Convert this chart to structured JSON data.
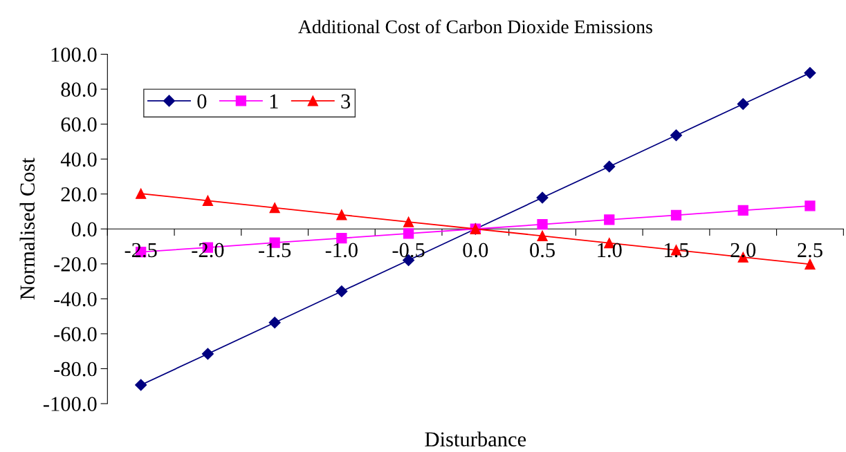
{
  "chart_data": {
    "type": "line",
    "title": "Additional Cost of Carbon Dioxide Emissions",
    "xlabel": "Disturbance",
    "ylabel": "Normalised Cost",
    "categories": [
      "-2.5",
      "-2.0",
      "-1.5",
      "-1.0",
      "-0.5",
      "0.0",
      "0.5",
      "1.0",
      "1.5",
      "2.0",
      "2.5"
    ],
    "series": [
      {
        "name": "0",
        "color": "#000080",
        "marker": "diamond",
        "values": [
          -89.3,
          -71.5,
          -53.6,
          -35.7,
          -17.9,
          0,
          17.9,
          35.7,
          53.6,
          71.5,
          89.3
        ]
      },
      {
        "name": "1",
        "color": "#ff00ff",
        "marker": "square",
        "values": [
          -13.2,
          -10.6,
          -7.9,
          -5.3,
          -2.6,
          0,
          2.6,
          5.3,
          7.9,
          10.6,
          13.2
        ]
      },
      {
        "name": "3",
        "color": "#ff0000",
        "marker": "triangle",
        "values": [
          20.2,
          16.2,
          12.1,
          8.1,
          4.0,
          0,
          -4.0,
          -8.1,
          -12.1,
          -16.2,
          -20.2
        ]
      }
    ],
    "ylim": [
      -100,
      100
    ],
    "yticks": [
      {
        "value": -100,
        "label": "-100.0"
      },
      {
        "value": -80,
        "label": "-80.0"
      },
      {
        "value": -60,
        "label": "-60.0"
      },
      {
        "value": -40,
        "label": "-40.0"
      },
      {
        "value": -20,
        "label": "-20.0"
      },
      {
        "value": 0,
        "label": "0.0"
      },
      {
        "value": 20,
        "label": "20.0"
      },
      {
        "value": 40,
        "label": "40.0"
      },
      {
        "value": 60,
        "label": "60.0"
      },
      {
        "value": 80,
        "label": "80.0"
      },
      {
        "value": 100,
        "label": "100.0"
      }
    ],
    "grid": false,
    "legend": "top left",
    "line_style": "solid"
  }
}
